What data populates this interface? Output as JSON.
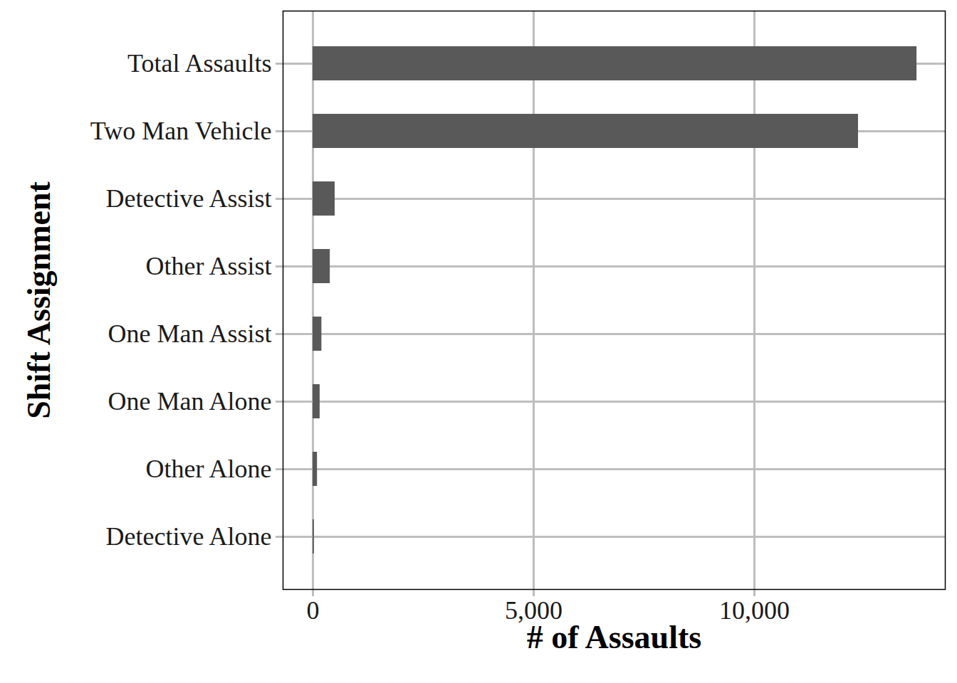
{
  "chart_data": {
    "type": "bar",
    "orientation": "horizontal",
    "x_label": "# of Assaults",
    "y_label": "Shift Assignment",
    "categories": [
      "Total Assaults",
      "Two Man Vehicle",
      "Detective Assist",
      "Other Assist",
      "One Man Assist",
      "One Man Alone",
      "Other Alone",
      "Detective Alone"
    ],
    "values": [
      13680,
      12355,
      500,
      390,
      200,
      160,
      100,
      30
    ],
    "color": "#595959",
    "xlim": [
      -677,
      14323
    ],
    "xticks": [
      0,
      {
        "value": 5000,
        "label": "5,000"
      },
      {
        "value": 10000,
        "label": "10,000"
      }
    ],
    "grid": true
  }
}
